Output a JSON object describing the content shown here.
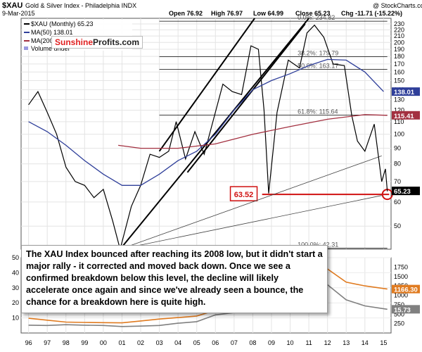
{
  "header": {
    "symbol": "$XAU",
    "name": "Gold & Silver Index - Philadelphia INDX",
    "date": "9-Mar-2015",
    "open": "Open 76.92",
    "high": "High 76.97",
    "low": "Low 64.99",
    "close": "Close 65.23",
    "chg": "Chg -11.71 (-15.22%)",
    "credit": "@ StockCharts.com"
  },
  "legend": {
    "main": "$XAU (Monthly) 65.23",
    "ma50": "MA(50) 138.01",
    "ma200": "MA(200) 115.41",
    "volume": "Volume undef"
  },
  "brand": {
    "part1": "Sunshine",
    "part2": "Profits.com"
  },
  "note": "The XAU Index bounced after reaching its 2008 low, but it didn't start a major rally - it corrected and moved back down. Once we see a confirmed breakdown below this level, the decline will likely accelerate once again and since we've already seen a bounce, the chance for a breakdown here is quite high.",
  "chart_data": [
    {
      "type": "line",
      "title": "$XAU (Monthly)",
      "y_scale": "log",
      "ylim": [
        42,
        240
      ],
      "y_ticks": [
        "230",
        "220",
        "210",
        "200",
        "190",
        "180",
        "170",
        "160",
        "150",
        "140",
        "130",
        "120",
        "110",
        "100",
        "90",
        "80",
        "70",
        "60",
        "50"
      ],
      "x_labels": [
        "96",
        "97",
        "98",
        "99",
        "00",
        "01",
        "02",
        "03",
        "04",
        "05",
        "06",
        "07",
        "08",
        "09",
        "10",
        "11",
        "12",
        "13",
        "14",
        "15"
      ],
      "series": [
        {
          "name": "$XAU (Monthly)",
          "color": "#000000",
          "points": [
            [
              1996.0,
              125
            ],
            [
              1996.5,
              138
            ],
            [
              1997.0,
              118
            ],
            [
              1997.5,
              100
            ],
            [
              1998.0,
              78
            ],
            [
              1998.5,
              70
            ],
            [
              1999.0,
              68
            ],
            [
              1999.5,
              62
            ],
            [
              2000.0,
              66
            ],
            [
              2000.5,
              52
            ],
            [
              2000.9,
              42
            ],
            [
              2001.5,
              58
            ],
            [
              2002.0,
              68
            ],
            [
              2002.5,
              86
            ],
            [
              2003.0,
              84
            ],
            [
              2003.5,
              88
            ],
            [
              2003.9,
              110
            ],
            [
              2004.4,
              83
            ],
            [
              2004.9,
              102
            ],
            [
              2005.4,
              86
            ],
            [
              2005.9,
              112
            ],
            [
              2006.4,
              146
            ],
            [
              2006.9,
              138
            ],
            [
              2007.4,
              135
            ],
            [
              2007.9,
              195
            ],
            [
              2008.3,
              190
            ],
            [
              2008.6,
              120
            ],
            [
              2008.85,
              64
            ],
            [
              2009.3,
              118
            ],
            [
              2009.9,
              175
            ],
            [
              2010.5,
              165
            ],
            [
              2010.9,
              215
            ],
            [
              2011.3,
              228
            ],
            [
              2011.8,
              208
            ],
            [
              2012.3,
              170
            ],
            [
              2012.9,
              168
            ],
            [
              2013.3,
              115
            ],
            [
              2013.6,
              95
            ],
            [
              2014.0,
              88
            ],
            [
              2014.5,
              108
            ],
            [
              2014.9,
              70
            ],
            [
              2015.1,
              77
            ],
            [
              2015.2,
              65
            ]
          ]
        },
        {
          "name": "MA(50)",
          "color": "#2f3f9a",
          "points": [
            [
              1996,
              110
            ],
            [
              1997,
              102
            ],
            [
              1998,
              92
            ],
            [
              1999,
              82
            ],
            [
              2000,
              74
            ],
            [
              2001,
              68
            ],
            [
              2002,
              68
            ],
            [
              2003,
              74
            ],
            [
              2004,
              82
            ],
            [
              2005,
              88
            ],
            [
              2006,
              100
            ],
            [
              2007,
              120
            ],
            [
              2008,
              140
            ],
            [
              2009,
              150
            ],
            [
              2010,
              158
            ],
            [
              2011,
              168
            ],
            [
              2012,
              176
            ],
            [
              2013,
              175
            ],
            [
              2014,
              160
            ],
            [
              2015,
              138
            ]
          ]
        },
        {
          "name": "MA(200)",
          "color": "#a33040",
          "points": [
            [
              2000.8,
              92
            ],
            [
              2002,
              90
            ],
            [
              2004,
              90
            ],
            [
              2006,
              93
            ],
            [
              2008,
              100
            ],
            [
              2010,
              106
            ],
            [
              2012,
              112
            ],
            [
              2014,
              116
            ],
            [
              2015.2,
              115.41
            ]
          ]
        }
      ],
      "levels": [
        {
          "label": "0.0%: 234.82",
          "value": 234.82
        },
        {
          "label": "38.2%: 179.79",
          "value": 179.79
        },
        {
          "label": "50.0%: 163.17",
          "value": 163.17
        },
        {
          "label": "61.8%: 115.64",
          "value": 115.64
        },
        {
          "label": "100.0%: 42.31",
          "value": 42.31
        },
        {
          "label": "63.52",
          "value": 63.52
        }
      ],
      "price_tags": [
        {
          "label": "138.01",
          "value": 138.01,
          "color": "#2f3f9a"
        },
        {
          "label": "115.41",
          "value": 115.41,
          "color": "#a33040"
        },
        {
          "label": "65.23",
          "value": 65.23,
          "color": "#000000"
        }
      ]
    },
    {
      "type": "line",
      "ylim_left": [
        0,
        50
      ],
      "ylim_right": [
        0,
        2000
      ],
      "y_ticks_left": [
        "50",
        "40",
        "30",
        "20",
        "10"
      ],
      "y_ticks_right": [
        "1750",
        "1500",
        "1250",
        "1000",
        "750",
        "500",
        "250"
      ],
      "series": [
        {
          "name": "Gold",
          "color": "#e07b20",
          "axis": "right",
          "points": [
            [
              1996,
              390
            ],
            [
              1997,
              340
            ],
            [
              1998,
              290
            ],
            [
              1999,
              280
            ],
            [
              2000,
              275
            ],
            [
              2001,
              270
            ],
            [
              2002,
              320
            ],
            [
              2003,
              370
            ],
            [
              2004,
              410
            ],
            [
              2005,
              450
            ],
            [
              2006,
              600
            ],
            [
              2007,
              700
            ],
            [
              2008,
              880
            ],
            [
              2009,
              1000
            ],
            [
              2010,
              1250
            ],
            [
              2011,
              1650
            ],
            [
              2011.7,
              1750
            ],
            [
              2012,
              1700
            ],
            [
              2013,
              1350
            ],
            [
              2014,
              1250
            ],
            [
              2015.2,
              1166.3
            ]
          ]
        },
        {
          "name": "Silver",
          "color": "#808080",
          "axis": "left",
          "points": [
            [
              1996,
              5.2
            ],
            [
              1997,
              5
            ],
            [
              1998,
              5.5
            ],
            [
              1999,
              5.2
            ],
            [
              2000,
              5
            ],
            [
              2001,
              4.3
            ],
            [
              2002,
              4.6
            ],
            [
              2003,
              5
            ],
            [
              2004,
              6.5
            ],
            [
              2005,
              7.5
            ],
            [
              2006,
              12
            ],
            [
              2007,
              13.5
            ],
            [
              2008,
              14
            ],
            [
              2009,
              15
            ],
            [
              2010,
              20
            ],
            [
              2011,
              40
            ],
            [
              2012,
              32
            ],
            [
              2013,
              22
            ],
            [
              2014,
              18
            ],
            [
              2015.2,
              15.73
            ]
          ]
        }
      ],
      "price_tags": [
        {
          "label": "1166.30",
          "value": 1166.3,
          "color": "#e07b20"
        },
        {
          "label": "15.73",
          "value": 15.73,
          "color": "#808080"
        }
      ]
    }
  ]
}
